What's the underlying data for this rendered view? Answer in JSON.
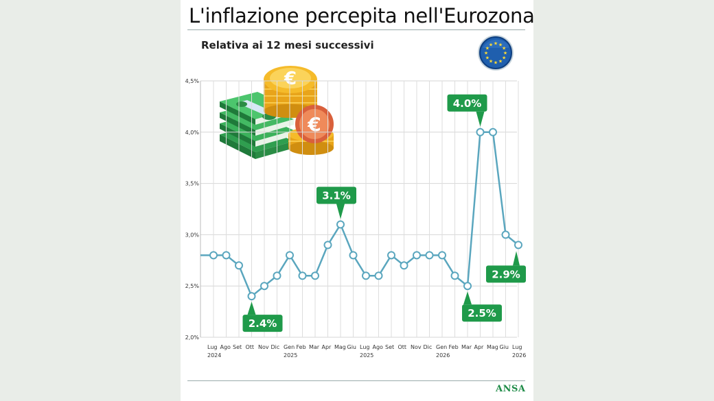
{
  "chart_data": {
    "type": "line",
    "title": "L'inflazione percepita nell'Eurozona",
    "subtitle": "Relativa ai 12 mesi successivi",
    "xlabel": "",
    "ylabel": "",
    "ylim": [
      2.0,
      4.5
    ],
    "y_ticks": [
      "4,5%",
      "4,0%",
      "3,5%",
      "3,0%",
      "2,5%",
      "2,0%"
    ],
    "y_tick_values": [
      4.5,
      4.0,
      3.5,
      3.0,
      2.5,
      2.0
    ],
    "x_tick_labels": [
      {
        "month": "Lug",
        "year": "2024"
      },
      {
        "month": "Ago",
        "year": ""
      },
      {
        "month": "Set",
        "year": ""
      },
      {
        "month": "Ott",
        "year": ""
      },
      {
        "month": "Nov",
        "year": ""
      },
      {
        "month": "Dic",
        "year": ""
      },
      {
        "month": "Gen",
        "year": "2025"
      },
      {
        "month": "Feb",
        "year": ""
      },
      {
        "month": "Mar",
        "year": ""
      },
      {
        "month": "Apr",
        "year": ""
      },
      {
        "month": "Mag",
        "year": ""
      },
      {
        "month": "Giu",
        "year": ""
      },
      {
        "month": "Lug",
        "year": "2025"
      },
      {
        "month": "Ago",
        "year": ""
      },
      {
        "month": "Set",
        "year": ""
      },
      {
        "month": "Ott",
        "year": ""
      },
      {
        "month": "Nov",
        "year": ""
      },
      {
        "month": "Dic",
        "year": ""
      },
      {
        "month": "Gen",
        "year": "2026"
      },
      {
        "month": "Feb",
        "year": ""
      },
      {
        "month": "Mar",
        "year": ""
      },
      {
        "month": "Apr",
        "year": ""
      },
      {
        "month": "Mag",
        "year": ""
      },
      {
        "month": "Giu",
        "year": ""
      },
      {
        "month": "Lug",
        "year": "2026"
      }
    ],
    "grid": true,
    "series": [
      {
        "values": [
          2.8,
          2.8,
          2.7,
          2.4,
          2.5,
          2.6,
          2.8,
          2.6,
          2.6,
          2.9,
          3.1,
          2.8,
          2.6,
          2.6,
          2.8,
          2.7,
          2.8,
          2.8,
          2.8,
          2.6,
          2.5,
          4.0,
          4.0,
          3.0,
          2.9
        ],
        "start_value": 2.8,
        "color": "#5aa6be"
      }
    ],
    "annotations": [
      {
        "text": "2.4%",
        "index": 3,
        "position": "below"
      },
      {
        "text": "3.1%",
        "index": 10,
        "position": "above"
      },
      {
        "text": "4.0%",
        "index": 21,
        "position": "above"
      },
      {
        "text": "2.5%",
        "index": 20,
        "position": "below"
      },
      {
        "text": "2.9%",
        "index": 24,
        "position": "below"
      }
    ],
    "annotation_color": "#1f9a4a"
  },
  "brand": {
    "name": "ANSA",
    "color": "#1e8b47"
  },
  "icons": [
    "eu-flag-icon",
    "money-coins-icon"
  ]
}
